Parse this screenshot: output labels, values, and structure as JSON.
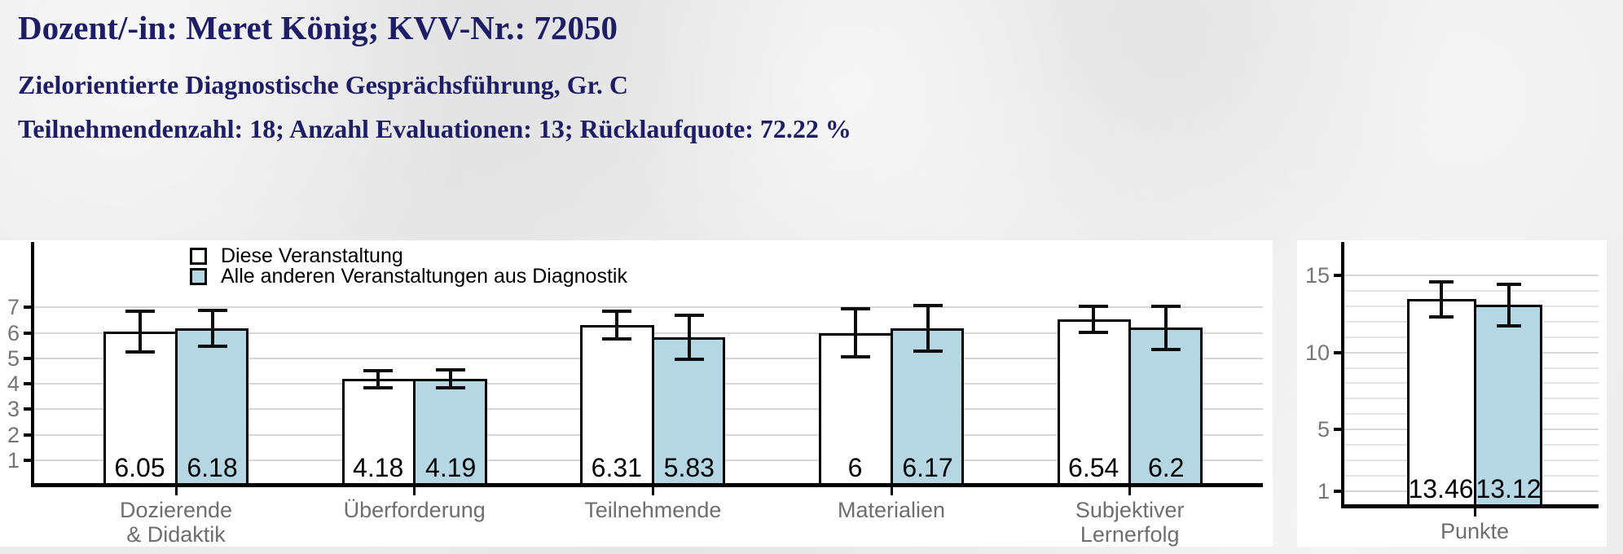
{
  "header": {
    "line1": "Dozent/-in: Meret König; KVV-Nr.: 72050",
    "line2": "Zielorientierte Diagnostische Gesprächsführung, Gr. C",
    "line3": "Teilnehmendenzahl: 18; Anzahl Evaluationen: 13; Rücklaufquote: 72.22 %"
  },
  "colors": {
    "header_text": "#1e1e66",
    "bar_this_course": "#ffffff",
    "bar_comparison": "#b5d6e3",
    "bar_border": "#000000",
    "grid_major": "#d6d6d6",
    "grid_minor": "#e4e4e4",
    "axis": "#000000",
    "tick_label": "#757575",
    "category_label": "#6e6e6e"
  },
  "legend": {
    "items": [
      {
        "label": "Diese Veranstaltung",
        "color": "#ffffff"
      },
      {
        "label": "Alle anderen Veranstaltungen aus Diagnostik",
        "color": "#b5d6e3"
      }
    ],
    "position": "top-left inside left plot"
  },
  "chart_data": [
    {
      "id": "scales",
      "type": "bar",
      "title": "",
      "xlabel": "",
      "ylabel": "",
      "categories": [
        "Dozierende\n& Didaktik",
        "Überforderung",
        "Teilnehmende",
        "Materialien",
        "Subjektiver\nLernerfolg"
      ],
      "yticks": [
        1,
        2,
        3,
        4,
        5,
        6,
        7
      ],
      "ylim": [
        0,
        9.6
      ],
      "grid": {
        "major": [
          1,
          2,
          3,
          4,
          5,
          6,
          7
        ],
        "minor": []
      },
      "legend_position": "top-left",
      "series": [
        {
          "name": "Diese Veranstaltung",
          "color": "#ffffff",
          "values": [
            6.05,
            4.18,
            6.31,
            6,
            6.54
          ],
          "value_labels": [
            "6.05",
            "4.18",
            "6.31",
            "6",
            "6.54"
          ],
          "err_low": [
            5.25,
            3.85,
            5.76,
            5.05,
            6.03
          ],
          "err_high": [
            6.85,
            4.5,
            6.86,
            6.95,
            7.05
          ]
        },
        {
          "name": "Alle anderen Veranstaltungen aus Diagnostik",
          "color": "#b5d6e3",
          "values": [
            6.18,
            4.19,
            5.83,
            6.17,
            6.2
          ],
          "value_labels": [
            "6.18",
            "4.19",
            "5.83",
            "6.17",
            "6.2"
          ],
          "err_low": [
            5.48,
            3.85,
            4.97,
            5.27,
            5.35
          ],
          "err_high": [
            6.88,
            4.55,
            6.7,
            7.07,
            7.03
          ]
        }
      ]
    },
    {
      "id": "punkte",
      "type": "bar",
      "title": "",
      "xlabel": "",
      "ylabel": "",
      "categories": [
        "Punkte"
      ],
      "yticks": [
        1,
        5,
        10,
        15
      ],
      "ylim": [
        0,
        17.3
      ],
      "grid": {
        "major": [
          1,
          5,
          10,
          15
        ],
        "minor": [
          2,
          3,
          4,
          6,
          7,
          8,
          9,
          11,
          12,
          13,
          14
        ]
      },
      "series": [
        {
          "name": "Diese Veranstaltung",
          "color": "#ffffff",
          "values": [
            13.46
          ],
          "value_labels": [
            "13.46"
          ],
          "err_low": [
            12.3
          ],
          "err_high": [
            14.6
          ]
        },
        {
          "name": "Alle anderen Veranstaltungen aus Diagnostik",
          "color": "#b5d6e3",
          "values": [
            13.12
          ],
          "value_labels": [
            "13.12"
          ],
          "err_low": [
            11.75
          ],
          "err_high": [
            14.4
          ]
        }
      ]
    }
  ]
}
